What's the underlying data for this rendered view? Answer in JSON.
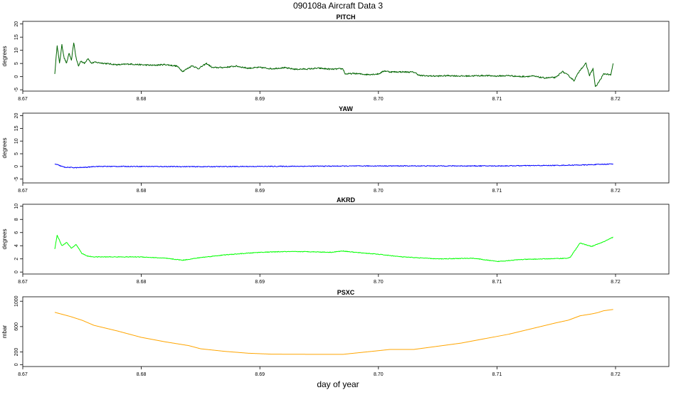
{
  "figure": {
    "title": "090108a   Aircraft Data 3",
    "xlabel": "day of year"
  },
  "chart_data": [
    {
      "type": "line",
      "title": "PITCH",
      "ylabel": "degrees",
      "color": "#006400",
      "xlim": [
        8.67,
        8.7245
      ],
      "ylim": [
        -5.5,
        21
      ],
      "xticks": [
        "8.67",
        "8.68",
        "8.69",
        "8.70",
        "8.71",
        "8.72"
      ],
      "yticks": [
        "-5",
        "0",
        "5",
        "10",
        "15",
        "20"
      ],
      "x": [
        8.6727,
        8.6729,
        8.6731,
        8.6733,
        8.6735,
        8.6737,
        8.6739,
        8.6741,
        8.6743,
        8.6745,
        8.6747,
        8.6749,
        8.6752,
        8.6755,
        8.6758,
        8.676,
        8.677,
        8.678,
        8.679,
        8.68,
        8.681,
        8.682,
        8.683,
        8.6835,
        8.6843,
        8.6848,
        8.6855,
        8.686,
        8.687,
        8.688,
        8.689,
        8.69,
        8.691,
        8.692,
        8.693,
        8.694,
        8.695,
        8.696,
        8.697,
        8.6972,
        8.698,
        8.699,
        8.7,
        8.7005,
        8.701,
        8.702,
        8.703,
        8.7035,
        8.704,
        8.705,
        8.706,
        8.707,
        8.708,
        8.709,
        8.71,
        8.711,
        8.712,
        8.713,
        8.714,
        8.715,
        8.7155,
        8.716,
        8.7165,
        8.717,
        8.7175,
        8.7178,
        8.7181,
        8.7183,
        8.7186,
        8.719,
        8.7193,
        8.7196,
        8.7198
      ],
      "values": [
        1,
        12,
        5,
        12,
        7,
        5,
        9,
        6,
        13,
        7,
        4,
        6,
        5,
        7,
        5,
        5.5,
        5,
        4.5,
        4.8,
        4.5,
        4.3,
        4.6,
        4,
        2,
        4.2,
        3,
        5,
        3.4,
        3.5,
        4,
        3.2,
        3.5,
        3,
        3.4,
        2.8,
        2.9,
        3.2,
        2.8,
        3,
        1,
        1.2,
        0.8,
        1,
        2.2,
        1.8,
        1.8,
        1.7,
        0.4,
        0.3,
        0.2,
        0.4,
        0.2,
        0.3,
        0.4,
        0.2,
        0.4,
        0,
        0.2,
        -0.5,
        -0.3,
        2,
        0.5,
        -1.5,
        2.5,
        5,
        0.5,
        3,
        -4,
        -2,
        1,
        1,
        0.5,
        5
      ]
    },
    {
      "type": "line",
      "title": "YAW",
      "ylabel": "degrees",
      "color": "#0000FF",
      "xlim": [
        8.67,
        8.7245
      ],
      "ylim": [
        -6.5,
        21
      ],
      "xticks": [
        "8.67",
        "8.68",
        "8.69",
        "8.70",
        "8.71",
        "8.72"
      ],
      "yticks": [
        "-5",
        "0",
        "5",
        "10",
        "15",
        "20"
      ],
      "x": [
        8.6727,
        8.6735,
        8.6745,
        8.6755,
        8.676,
        8.68,
        8.685,
        8.69,
        8.695,
        8.7,
        8.705,
        8.71,
        8.715,
        8.7175,
        8.7198
      ],
      "values": [
        1,
        -0.3,
        -0.5,
        -0.3,
        0,
        0,
        -0.1,
        0,
        0.1,
        0.2,
        0.2,
        0.2,
        0.4,
        0.6,
        1
      ]
    },
    {
      "type": "line",
      "title": "AKRD",
      "ylabel": "degrees",
      "color": "#00FF00",
      "xlim": [
        8.67,
        8.7245
      ],
      "ylim": [
        -0.3,
        10.3
      ],
      "xticks": [
        "8.67",
        "8.68",
        "8.69",
        "8.70",
        "8.71",
        "8.72"
      ],
      "yticks": [
        "0",
        "2",
        "4",
        "6",
        "8",
        "10"
      ],
      "x": [
        8.6727,
        8.6729,
        8.6733,
        8.6737,
        8.6741,
        8.6745,
        8.675,
        8.6755,
        8.676,
        8.678,
        8.68,
        8.682,
        8.6835,
        8.685,
        8.687,
        8.69,
        8.692,
        8.694,
        8.696,
        8.697,
        8.698,
        8.7,
        8.702,
        8.705,
        8.708,
        8.71,
        8.712,
        8.714,
        8.716,
        8.7162,
        8.717,
        8.718,
        8.719,
        8.7198
      ],
      "values": [
        3.5,
        5.6,
        4,
        4.5,
        3.6,
        4.2,
        2.8,
        2.4,
        2.3,
        2.3,
        2.3,
        2.1,
        1.8,
        2.2,
        2.6,
        3,
        3.1,
        3.1,
        3,
        3.2,
        3,
        2.7,
        2.3,
        2,
        2.1,
        1.6,
        1.9,
        2,
        2.1,
        2.3,
        4.4,
        3.9,
        4.6,
        5.3
      ]
    },
    {
      "type": "line",
      "title": "PSXC",
      "ylabel": "mbar",
      "color": "#FFA500",
      "xlim": [
        8.67,
        8.7245
      ],
      "ylim": [
        -30,
        1070
      ],
      "xticks": [
        "8.67",
        "8.68",
        "8.69",
        "8.70",
        "8.71",
        "8.72"
      ],
      "yticks": [
        "0",
        "200",
        "600",
        "1000"
      ],
      "x": [
        8.6727,
        8.674,
        8.675,
        8.676,
        8.678,
        8.68,
        8.682,
        8.684,
        8.685,
        8.687,
        8.689,
        8.691,
        8.695,
        8.697,
        8.7,
        8.701,
        8.703,
        8.705,
        8.707,
        8.709,
        8.711,
        8.713,
        8.715,
        8.716,
        8.717,
        8.718,
        8.7185,
        8.719,
        8.7198
      ],
      "values": [
        825,
        760,
        700,
        620,
        530,
        430,
        360,
        300,
        250,
        210,
        180,
        165,
        162,
        162,
        220,
        240,
        240,
        290,
        340,
        410,
        480,
        570,
        660,
        700,
        770,
        800,
        820,
        850,
        870
      ]
    }
  ]
}
